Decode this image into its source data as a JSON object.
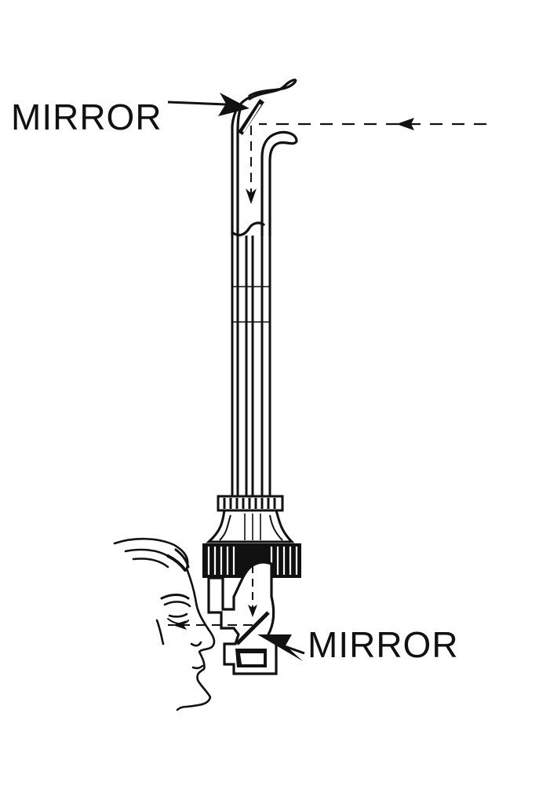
{
  "labels": {
    "top_mirror": "MIRROR",
    "bottom_mirror": "MIRROR"
  },
  "colors": {
    "ink": "#111111",
    "paper": "#ffffff"
  }
}
